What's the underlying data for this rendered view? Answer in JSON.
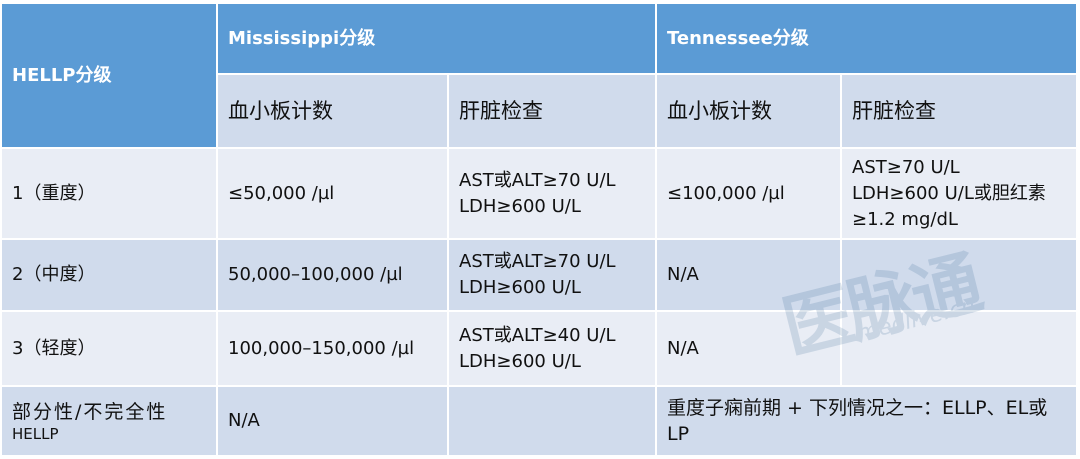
{
  "header": {
    "hellp": "HELLP分级",
    "mississippi": "Mississippi分级",
    "tennessee": "Tennessee分级",
    "platelet": "血小板计数",
    "liver": "肝脏检查"
  },
  "rows": [
    {
      "label": "1（重度）",
      "m_plt": "≤50,000 /µl",
      "m_liver": "AST或ALT≥70 U/L\nLDH≥600 U/L",
      "t_plt": "≤100,000 /µl",
      "t_liver": "AST≥70 U/L\nLDH≥600 U/L或胆红素\n≥1.2 mg/dL"
    },
    {
      "label": "2（中度）",
      "m_plt": "50,000–100,000 /µl",
      "m_liver": "AST或ALT≥70 U/L\nLDH≥600 U/L",
      "t_plt": "N/A",
      "t_liver": ""
    },
    {
      "label": "3（轻度）",
      "m_plt": "100,000–150,000 /µl",
      "m_liver": "AST或ALT≥40 U/L\nLDH≥600 U/L",
      "t_plt": "N/A",
      "t_liver": ""
    }
  ],
  "partial": {
    "label_line1": "部分性/不完全性",
    "label_line2": "HELLP",
    "m_plt": "N/A",
    "m_liver": "",
    "tennessee": "重度子痫前期 + 下列情况之一：ELLP、EL或LP"
  },
  "watermark": {
    "logo": "医脉通",
    "site": "medlive.cn"
  },
  "colors": {
    "header": "#5b9bd5",
    "row_dark": "#d0dbec",
    "row_light": "#e9edf5"
  }
}
